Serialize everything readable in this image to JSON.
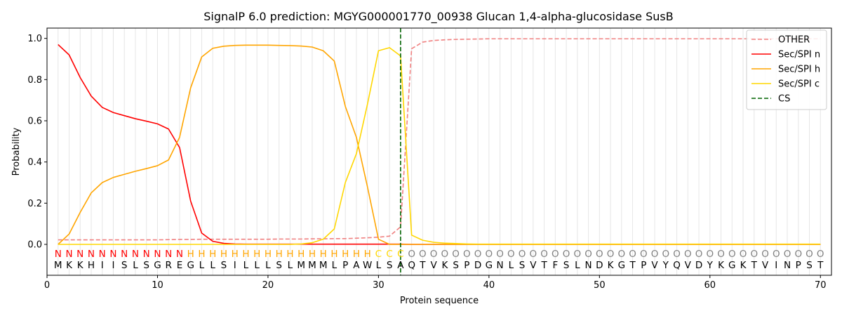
{
  "chart_data": {
    "type": "line",
    "title": "SignalP 6.0 prediction: MGYG000001770_00938 Glucan 1,4-alpha-glucosidase SusB",
    "xlabel": "Protein sequence",
    "ylabel": "Probability",
    "xlim": [
      0,
      71
    ],
    "ylim": [
      -0.15,
      1.05
    ],
    "xticks": [
      "0",
      "10",
      "20",
      "30",
      "40",
      "50",
      "60",
      "70"
    ],
    "yticks": [
      "0.0",
      "0.2",
      "0.4",
      "0.6",
      "0.8",
      "1.0"
    ],
    "grid": "vertical lines at each residue",
    "legend_position": "top-right",
    "x": [
      1,
      2,
      3,
      4,
      5,
      6,
      7,
      8,
      9,
      10,
      11,
      12,
      13,
      14,
      15,
      16,
      17,
      18,
      19,
      20,
      21,
      22,
      23,
      24,
      25,
      26,
      27,
      28,
      29,
      30,
      31,
      32,
      33,
      34,
      35,
      36,
      37,
      38,
      39,
      40,
      41,
      42,
      43,
      44,
      45,
      46,
      47,
      48,
      49,
      50,
      51,
      52,
      53,
      54,
      55,
      56,
      57,
      58,
      59,
      60,
      61,
      62,
      63,
      64,
      65,
      66,
      67,
      68,
      69,
      70
    ],
    "series": [
      {
        "name": "OTHER",
        "color": "#f08080",
        "dash": "dashed",
        "values": [
          0.022,
          0.022,
          0.022,
          0.022,
          0.022,
          0.022,
          0.022,
          0.022,
          0.022,
          0.022,
          0.023,
          0.024,
          0.024,
          0.025,
          0.025,
          0.025,
          0.025,
          0.025,
          0.025,
          0.025,
          0.026,
          0.026,
          0.026,
          0.027,
          0.027,
          0.028,
          0.028,
          0.03,
          0.032,
          0.035,
          0.04,
          0.085,
          0.95,
          0.982,
          0.99,
          0.993,
          0.995,
          0.996,
          0.997,
          0.998,
          0.998,
          0.998,
          0.998,
          0.998,
          0.998,
          0.998,
          0.998,
          0.998,
          0.998,
          0.998,
          0.998,
          0.998,
          0.998,
          0.998,
          0.998,
          0.998,
          0.998,
          0.998,
          0.998,
          0.998,
          0.998,
          0.998,
          0.998,
          0.998,
          0.998,
          0.998,
          0.998,
          0.998,
          0.998,
          0.998
        ]
      },
      {
        "name": "Sec/SPI n",
        "color": "#ff0000",
        "dash": "solid",
        "values": [
          0.97,
          0.92,
          0.81,
          0.72,
          0.665,
          0.64,
          0.625,
          0.61,
          0.598,
          0.585,
          0.56,
          0.47,
          0.21,
          0.055,
          0.015,
          0.005,
          0.002,
          0.001,
          0.001,
          0.001,
          0.001,
          0.001,
          0.001,
          0.001,
          0.001,
          0.001,
          0.001,
          0.001,
          0.001,
          0.001,
          0.001,
          0.001,
          0,
          0,
          0,
          0,
          0,
          0,
          0,
          0,
          0,
          0,
          0,
          0,
          0,
          0,
          0,
          0,
          0,
          0,
          0,
          0,
          0,
          0,
          0,
          0,
          0,
          0,
          0,
          0,
          0,
          0,
          0,
          0,
          0,
          0,
          0,
          0,
          0,
          0
        ]
      },
      {
        "name": "Sec/SPI h",
        "color": "#ffa500",
        "dash": "solid",
        "values": [
          0.0,
          0.05,
          0.155,
          0.25,
          0.3,
          0.325,
          0.34,
          0.355,
          0.368,
          0.382,
          0.41,
          0.52,
          0.76,
          0.91,
          0.952,
          0.962,
          0.966,
          0.967,
          0.967,
          0.967,
          0.966,
          0.965,
          0.963,
          0.958,
          0.94,
          0.89,
          0.67,
          0.52,
          0.28,
          0.025,
          0.0,
          0.0,
          0.0,
          0.0,
          0.0,
          0.0,
          0.0,
          0.0,
          0.0,
          0.0,
          0.0,
          0.0,
          0.0,
          0.0,
          0.0,
          0.0,
          0.0,
          0.0,
          0.0,
          0.0,
          0.0,
          0.0,
          0.0,
          0.0,
          0.0,
          0.0,
          0.0,
          0.0,
          0.0,
          0.0,
          0.0,
          0.0,
          0.0,
          0.0,
          0.0,
          0.0,
          0.0,
          0.0,
          0.0,
          0.0
        ]
      },
      {
        "name": "Sec/SPI c",
        "color": "#ffd700",
        "dash": "solid",
        "values": [
          0.0,
          0.0,
          0.0,
          0.0,
          0.0,
          0.0,
          0.0,
          0.0,
          0.0,
          0.0,
          0.0,
          0.0,
          0.0,
          0.0,
          0.0,
          0.0,
          0.0,
          0.0,
          0.0,
          0.0,
          0.0,
          0.0,
          0.002,
          0.008,
          0.025,
          0.075,
          0.3,
          0.44,
          0.68,
          0.94,
          0.955,
          0.915,
          0.045,
          0.02,
          0.01,
          0.006,
          0.004,
          0.002,
          0.001,
          0.001,
          0.001,
          0.001,
          0.001,
          0.001,
          0.001,
          0.001,
          0.001,
          0.001,
          0.001,
          0.001,
          0.001,
          0.001,
          0.001,
          0.001,
          0.001,
          0.001,
          0.001,
          0.001,
          0.001,
          0.001,
          0.001,
          0.001,
          0.001,
          0.001,
          0.001,
          0.001,
          0.001,
          0.001,
          0.001,
          0.001
        ]
      }
    ],
    "cleavage_site": {
      "name": "CS",
      "x": 32,
      "color": "#006400"
    },
    "labels": [
      "N",
      "N",
      "N",
      "N",
      "N",
      "N",
      "N",
      "N",
      "N",
      "N",
      "N",
      "N",
      "H",
      "H",
      "H",
      "H",
      "H",
      "H",
      "H",
      "H",
      "H",
      "H",
      "H",
      "H",
      "H",
      "H",
      "H",
      "H",
      "H",
      "C",
      "C",
      "C",
      "O",
      "O",
      "O",
      "O",
      "O",
      "O",
      "O",
      "O",
      "O",
      "O",
      "O",
      "O",
      "O",
      "O",
      "O",
      "O",
      "O",
      "O",
      "O",
      "O",
      "O",
      "O",
      "O",
      "O",
      "O",
      "O",
      "O",
      "O",
      "O",
      "O",
      "O",
      "O",
      "O",
      "O",
      "O",
      "O",
      "O",
      "O"
    ],
    "label_colors": {
      "N": "#ff0000",
      "H": "#ffa500",
      "C": "#ffd700",
      "O": "#808080"
    },
    "sequence": [
      "M",
      "K",
      "K",
      "H",
      "I",
      "I",
      "S",
      "L",
      "S",
      "G",
      "R",
      "E",
      "G",
      "L",
      "L",
      "S",
      "I",
      "L",
      "L",
      "L",
      "S",
      "L",
      "M",
      "M",
      "M",
      "L",
      "P",
      "A",
      "W",
      "L",
      "S",
      "A",
      "Q",
      "T",
      "V",
      "K",
      "S",
      "P",
      "D",
      "G",
      "N",
      "L",
      "S",
      "V",
      "T",
      "F",
      "S",
      "L",
      "N",
      "D",
      "K",
      "G",
      "T",
      "P",
      "V",
      "Y",
      "Q",
      "V",
      "D",
      "Y",
      "K",
      "G",
      "K",
      "T",
      "V",
      "I",
      "N",
      "P",
      "S",
      "T"
    ]
  }
}
